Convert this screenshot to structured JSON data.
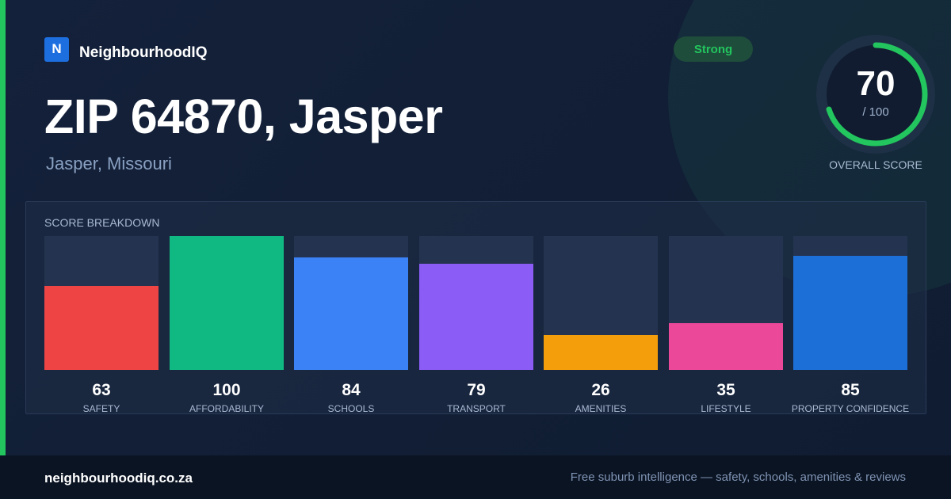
{
  "brand": {
    "mark": "N",
    "name": "NeighbourhoodIQ"
  },
  "title": "ZIP 64870, Jasper",
  "subtitle": "Jasper, Missouri",
  "badge": "Strong",
  "overall": {
    "score": "70",
    "max": "/ 100",
    "label": "OVERALL SCORE",
    "value": 70,
    "color": "#22c55e"
  },
  "breakdown_title": "SCORE BREAKDOWN",
  "chart_data": {
    "type": "bar",
    "categories": [
      "SAFETY",
      "AFFORDABILITY",
      "SCHOOLS",
      "TRANSPORT",
      "AMENITIES",
      "LIFESTYLE",
      "PROPERTY CONFIDENCE"
    ],
    "values": [
      63,
      100,
      84,
      79,
      26,
      35,
      85
    ],
    "colors": [
      "#ef4444",
      "#10b981",
      "#3b82f6",
      "#8b5cf6",
      "#f59e0b",
      "#ec4899",
      "#1d6fd8"
    ],
    "ylim": [
      0,
      100
    ],
    "title": "SCORE BREAKDOWN"
  },
  "footer": {
    "domain": "neighbourhoodiq.co.za",
    "tagline": "Free suburb intelligence — safety, schools, amenities & reviews"
  }
}
